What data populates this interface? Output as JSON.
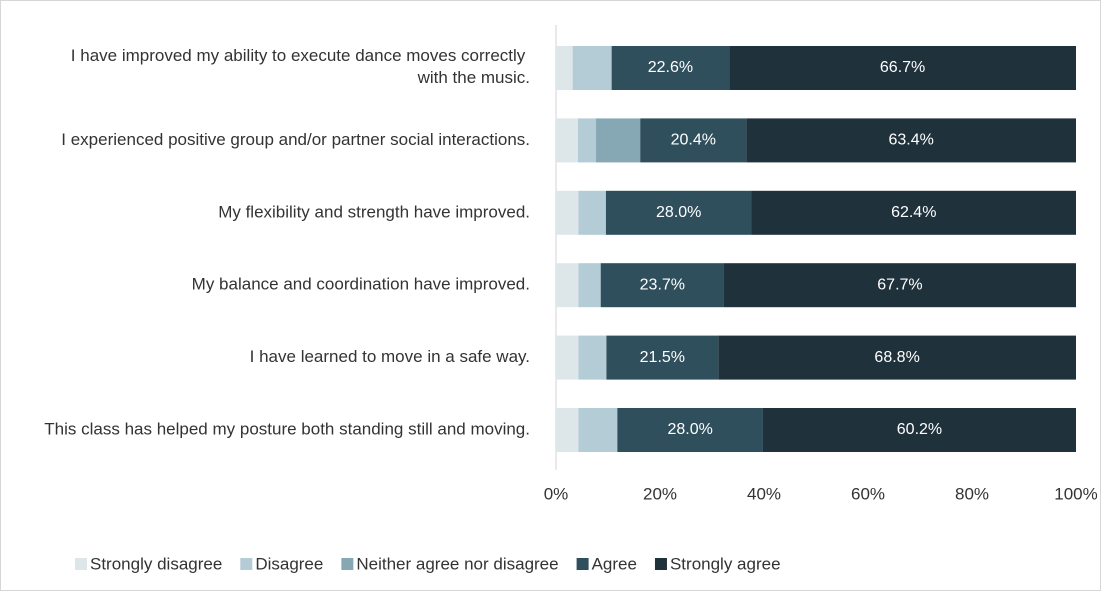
{
  "chart_data": {
    "type": "stacked_bar_horizontal",
    "categories": [
      "I have improved my ability to execute dance moves correctly with the music.",
      "I experienced positive group and/or partner social interactions.",
      "My flexibility and strength have improved.",
      "My balance and coordination have improved.",
      "I have learned to move in a safe way.",
      "This class has helped my posture both standing still and moving."
    ],
    "series": [
      {
        "name": "Strongly disagree",
        "color": "#dde7ea",
        "values": [
          3.2,
          4.2,
          4.3,
          4.3,
          4.3,
          4.3
        ]
      },
      {
        "name": "Disagree",
        "color": "#b3ccd5",
        "values": [
          7.5,
          3.5,
          5.3,
          4.3,
          5.4,
          7.5
        ]
      },
      {
        "name": "Neither agree nor disagree",
        "color": "#86a8b4",
        "values": [
          0,
          8.5,
          0,
          0,
          0,
          0
        ]
      },
      {
        "name": "Agree",
        "color": "#2f4f5d",
        "values": [
          22.6,
          20.4,
          28.0,
          23.7,
          21.5,
          28.0
        ],
        "value_labels": [
          "22.6%",
          "20.4%",
          "28.0%",
          "23.7%",
          "21.5%",
          "28.0%"
        ]
      },
      {
        "name": "Strongly agree",
        "color": "#1f313b",
        "values": [
          66.7,
          63.4,
          62.4,
          67.7,
          68.8,
          60.2
        ],
        "value_labels": [
          "66.7%",
          "63.4%",
          "62.4%",
          "67.7%",
          "68.8%",
          "60.2%"
        ]
      }
    ],
    "xlim": [
      0,
      100
    ],
    "xticks": [
      {
        "value": 0,
        "label": "0%"
      },
      {
        "value": 20,
        "label": "20%"
      },
      {
        "value": 40,
        "label": "40%"
      },
      {
        "value": 60,
        "label": "60%"
      },
      {
        "value": 80,
        "label": "80%"
      },
      {
        "value": 100,
        "label": "100%"
      }
    ],
    "legend": "bottom"
  }
}
